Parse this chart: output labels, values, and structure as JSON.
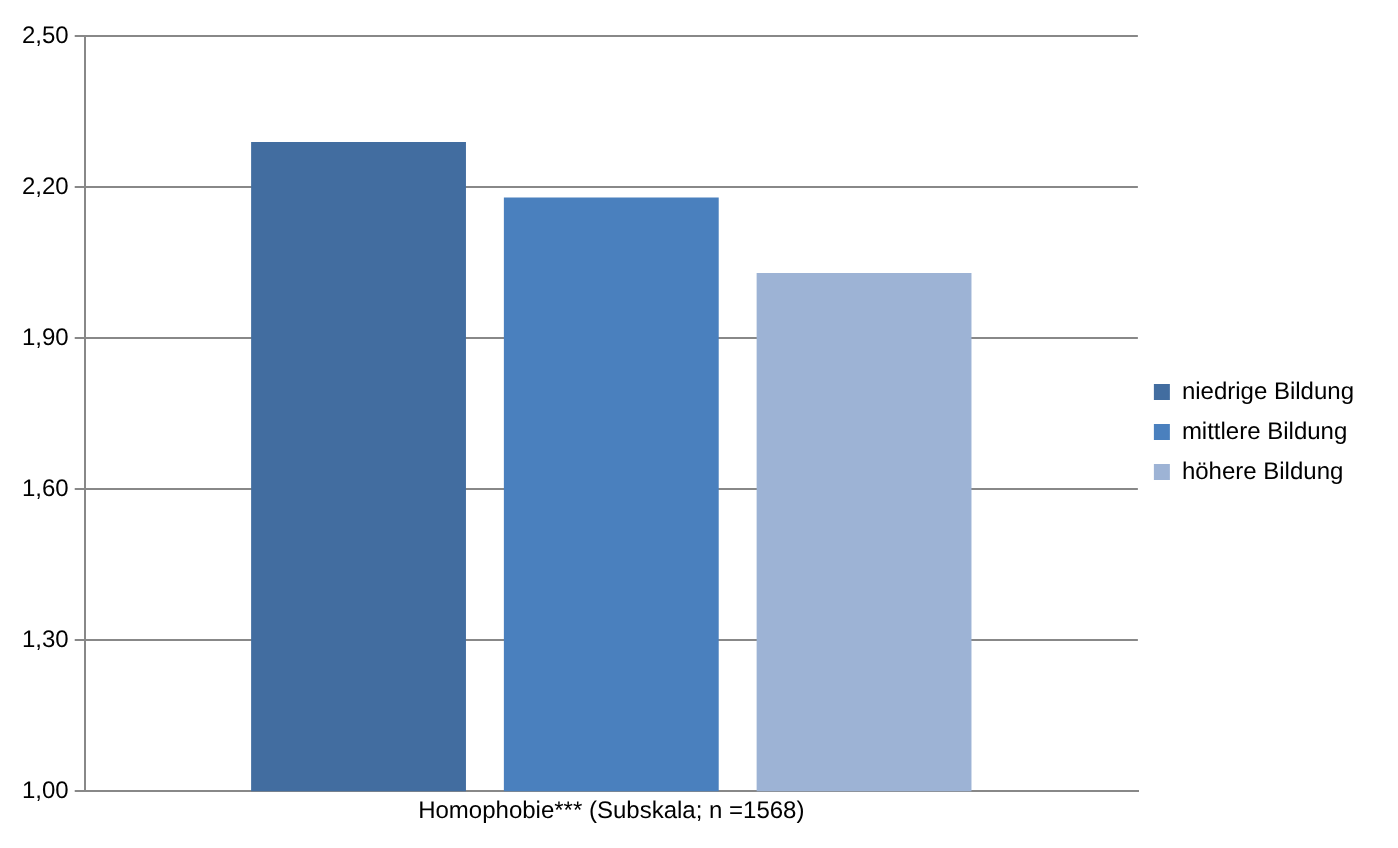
{
  "chart_data": {
    "type": "bar",
    "categories": [
      "Homophobie*** (Subskala; n =1568)"
    ],
    "series": [
      {
        "name": "niedrige Bildung",
        "color": "#426da0",
        "values": [
          2.29
        ]
      },
      {
        "name": "mittlere Bildung",
        "color": "#4a80be",
        "values": [
          2.18
        ]
      },
      {
        "name": "höhere Bildung",
        "color": "#9db3d5",
        "values": [
          2.03
        ]
      }
    ],
    "ylim": [
      1,
      2.5
    ],
    "yticks": [
      {
        "value": 1,
        "label": "1,00"
      },
      {
        "value": 1.3,
        "label": "1,30"
      },
      {
        "value": 1.6,
        "label": "1,60"
      },
      {
        "value": 1.9,
        "label": "1,90"
      },
      {
        "value": 2.2,
        "label": "2,20"
      },
      {
        "value": 2.5,
        "label": "2,50"
      }
    ],
    "grid": "y",
    "legend": "right"
  }
}
